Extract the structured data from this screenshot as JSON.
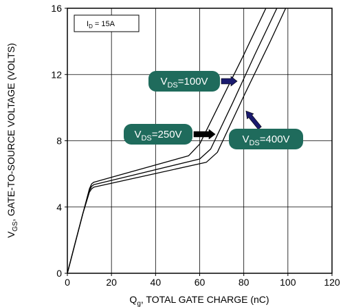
{
  "chart_data": {
    "type": "line",
    "title": "",
    "xlabel": {
      "main": "Q",
      "sub": "g",
      "rest": ", TOTAL GATE CHARGE (nC)"
    },
    "ylabel": {
      "main": "V",
      "sub": "GS",
      "rest": ", GATE-TO-SOURCE VOLTAGE (VOLTS)"
    },
    "xlim": [
      0,
      120
    ],
    "ylim": [
      0,
      16
    ],
    "xticks": [
      0,
      20,
      40,
      60,
      80,
      100,
      120
    ],
    "yticks": [
      0,
      4,
      8,
      12,
      16
    ],
    "grid": true,
    "condition": {
      "main": "I",
      "sub": "D",
      "rest": " = 15A"
    },
    "series": [
      {
        "name": "V_DS=100V",
        "points": [
          [
            0,
            0
          ],
          [
            3.5,
            1.8
          ],
          [
            7,
            3.6
          ],
          [
            10,
            5.1
          ],
          [
            11,
            5.4
          ],
          [
            12,
            5.5
          ],
          [
            55,
            7.1
          ],
          [
            60,
            7.8
          ],
          [
            70,
            10.5
          ],
          [
            80,
            13.2
          ],
          [
            90,
            16.0
          ]
        ]
      },
      {
        "name": "V_DS=250V",
        "points": [
          [
            0,
            0
          ],
          [
            3.5,
            1.8
          ],
          [
            7,
            3.6
          ],
          [
            10,
            5.0
          ],
          [
            11,
            5.25
          ],
          [
            12,
            5.35
          ],
          [
            60,
            6.9
          ],
          [
            65,
            7.5
          ],
          [
            75,
            10.3
          ],
          [
            85,
            13.2
          ],
          [
            95,
            16.0
          ]
        ]
      },
      {
        "name": "V_DS=400V",
        "points": [
          [
            0,
            0
          ],
          [
            3.5,
            1.8
          ],
          [
            7,
            3.6
          ],
          [
            10,
            4.9
          ],
          [
            11,
            5.1
          ],
          [
            12,
            5.2
          ],
          [
            63,
            6.7
          ],
          [
            68,
            7.3
          ],
          [
            80,
            10.7
          ],
          [
            92,
            14.0
          ],
          [
            99,
            16.0
          ]
        ]
      }
    ],
    "annotations": [
      {
        "label": {
          "main": "V",
          "sub": "DS",
          "rest": "=100V"
        },
        "series_index": 0,
        "at": [
          77,
          11.9
        ],
        "arrow_color": "#1a1a6e"
      },
      {
        "label": {
          "main": "V",
          "sub": "DS",
          "rest": "=250V"
        },
        "series_index": 1,
        "at": [
          67,
          8.5
        ],
        "arrow_color": "#000000"
      },
      {
        "label": {
          "main": "V",
          "sub": "DS",
          "rest": "=400V"
        },
        "series_index": 2,
        "at": [
          81,
          9.8
        ],
        "arrow_color": "#1a1a6e"
      }
    ]
  },
  "colors": {
    "label_fill": "#1f6b5c",
    "curve": "#000000",
    "grid": "#000000"
  }
}
